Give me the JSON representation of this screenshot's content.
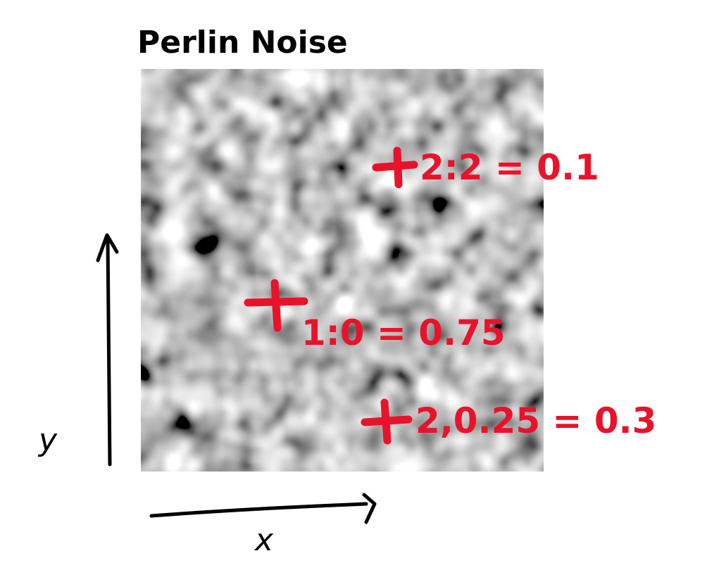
{
  "title": "Perlin Noise",
  "axes": {
    "x_label": "x",
    "y_label": "y"
  },
  "annotations": [
    {
      "label": "2:2 = 0.1"
    },
    {
      "label": "1:0 = 0.75"
    },
    {
      "label": "2,0.25 = 0.3"
    }
  ],
  "colors": {
    "annotation": "#e8132a",
    "pen": "#000000"
  },
  "noise_image": {
    "description_icon": "perlin-noise-texture",
    "palette": "grayscale"
  }
}
